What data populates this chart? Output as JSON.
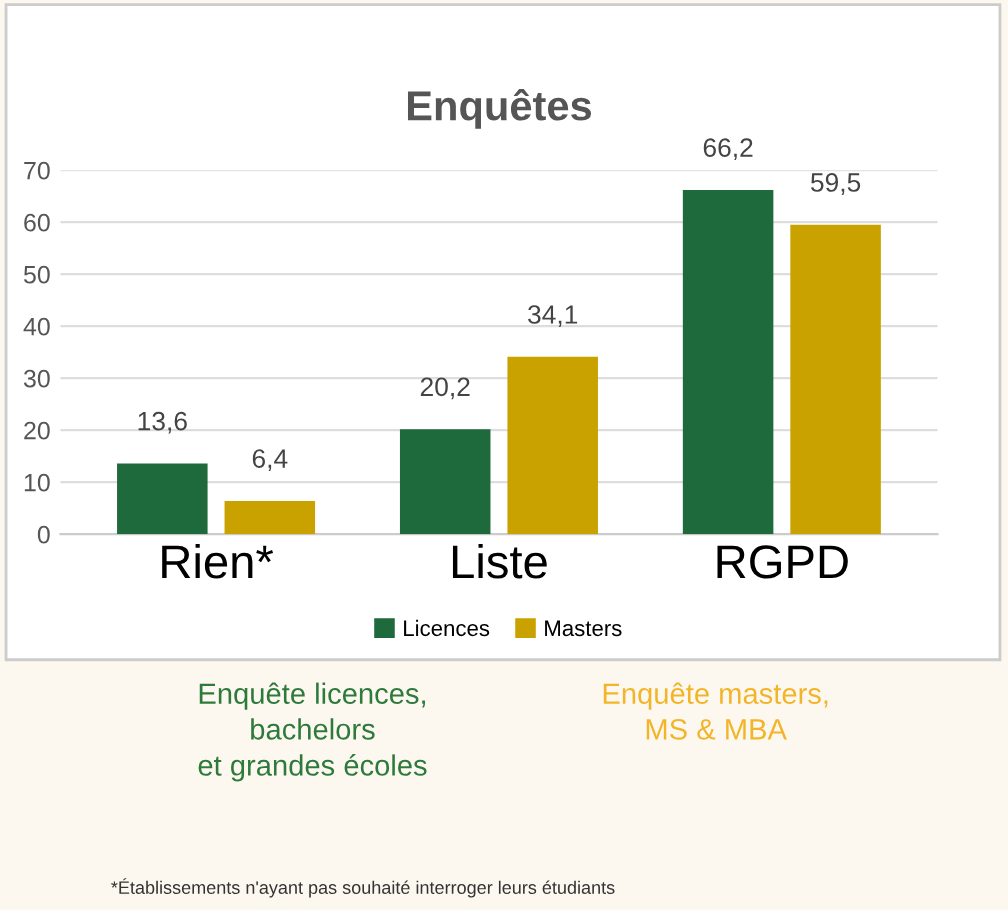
{
  "chart_data": {
    "type": "bar",
    "title": "Enquêtes",
    "categories": [
      "Rien*",
      "Liste",
      "RGPD"
    ],
    "series": [
      {
        "name": "Licences",
        "color": "#1e6a3c",
        "values": [
          13.6,
          20.2,
          66.2
        ],
        "value_labels": [
          "13,6",
          "20,2",
          "66,2"
        ]
      },
      {
        "name": "Masters",
        "color": "#c9a200",
        "values": [
          6.4,
          34.1,
          59.5
        ],
        "value_labels": [
          "6,4",
          "34,1",
          "59,5"
        ]
      }
    ],
    "ylim": [
      0,
      70
    ],
    "yticks": [
      0,
      10,
      20,
      30,
      40,
      50,
      60,
      70
    ],
    "grid": "y",
    "legend": "bottom",
    "annotations": [
      "Enquête licences,\nbachelors\net grandes écoles",
      "Enquête masters,\nMS & MBA",
      "*Établissements n'ayant pas souhaité interroger leurs étudiants"
    ]
  }
}
